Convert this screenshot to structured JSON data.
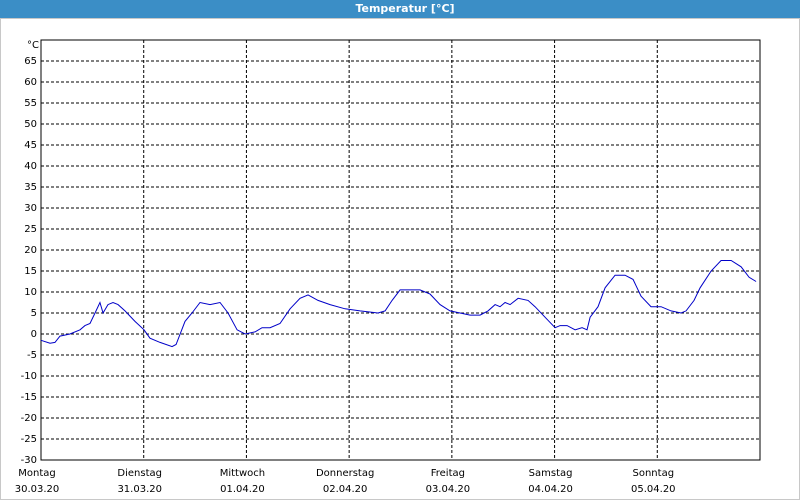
{
  "chart_data": {
    "type": "line",
    "title": "Temperatur [°C]",
    "y_label": "°C",
    "xlim": [
      0,
      7
    ],
    "ylim": [
      -30,
      70
    ],
    "yticks": [
      -30,
      -25,
      -20,
      -15,
      -10,
      -5,
      0,
      5,
      10,
      15,
      20,
      25,
      30,
      35,
      40,
      45,
      50,
      55,
      60,
      65
    ],
    "xticks": [
      {
        "value": 0,
        "label": [
          "Montag",
          "30.03.20"
        ]
      },
      {
        "value": 1,
        "label": [
          "Dienstag",
          "31.03.20"
        ]
      },
      {
        "value": 2,
        "label": [
          "Mittwoch",
          "01.04.20"
        ]
      },
      {
        "value": 3,
        "label": [
          "Donnerstag",
          "02.04.20"
        ]
      },
      {
        "value": 4,
        "label": [
          "Freitag",
          "03.04.20"
        ]
      },
      {
        "value": 5,
        "label": [
          "Samstag",
          "04.04.20"
        ]
      },
      {
        "value": 6,
        "label": [
          "Sonntag",
          "05.04.20"
        ]
      }
    ],
    "grid": true,
    "series": [
      {
        "color": "#0000c8",
        "x": [
          0,
          0.088,
          0.136,
          0.185,
          0.282,
          0.38,
          0.428,
          0.477,
          0.526,
          0.574,
          0.604,
          0.652,
          0.701,
          0.75,
          0.818,
          0.915,
          1.003,
          1.061,
          1.159,
          1.276,
          1.315,
          1.402,
          1.47,
          1.548,
          1.646,
          1.743,
          1.821,
          1.909,
          1.987,
          2.084,
          2.152,
          2.23,
          2.327,
          2.425,
          2.522,
          2.6,
          2.697,
          2.814,
          2.96,
          3.106,
          3.281,
          3.35,
          3.418,
          3.496,
          3.593,
          3.69,
          3.788,
          3.885,
          3.982,
          4.08,
          4.177,
          4.275,
          4.352,
          4.421,
          4.469,
          4.518,
          4.567,
          4.645,
          4.742,
          4.81,
          4.907,
          5.005,
          5.054,
          5.122,
          5.2,
          5.268,
          5.316,
          5.346,
          5.423,
          5.492,
          5.589,
          5.686,
          5.764,
          5.842,
          5.939,
          6.037,
          6.134,
          6.231,
          6.28,
          6.358,
          6.417,
          6.524,
          6.621,
          6.719,
          6.816,
          6.894,
          6.962
        ],
        "values": [
          -1.5,
          -2.2,
          -2,
          -0.5,
          0,
          1,
          2,
          2.5,
          5,
          7.5,
          5,
          7,
          7.5,
          7,
          5.5,
          3,
          1,
          -1,
          -2,
          -3,
          -2.5,
          3,
          5,
          7.5,
          7,
          7.5,
          5,
          1,
          0,
          0.5,
          1.5,
          1.5,
          2.5,
          6,
          8.5,
          9.3,
          8,
          7,
          6,
          5.5,
          5,
          5.5,
          8,
          10.5,
          10.5,
          10.5,
          9.5,
          7,
          5.5,
          5,
          4.5,
          4.5,
          5.5,
          7,
          6.5,
          7.5,
          7,
          8.5,
          8,
          6.5,
          4,
          1.5,
          2,
          2,
          1,
          1.5,
          1,
          4,
          6.5,
          11,
          14,
          14,
          13,
          9,
          6.5,
          6.5,
          5.5,
          5,
          5.5,
          8,
          11,
          15,
          17.5,
          17.5,
          16,
          13.5,
          12.5
        ]
      }
    ]
  }
}
